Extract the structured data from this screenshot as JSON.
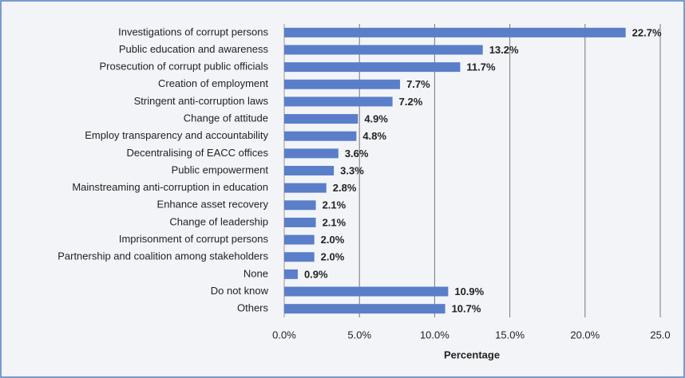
{
  "chart_data": {
    "type": "bar",
    "orientation": "horizontal",
    "categories": [
      "Investigations of corrupt persons",
      "Public education and awareness",
      "Prosecution of corrupt public officials",
      "Creation of employment",
      "Stringent anti-corruption laws",
      "Change of attitude",
      "Employ transparency and accountability",
      "Decentralising of EACC offices",
      "Public empowerment",
      "Mainstreaming anti-corruption in education",
      "Enhance asset recovery",
      "Change of leadership",
      "Imprisonment of corrupt persons",
      "Partnership and coalition among stakeholders",
      "None",
      "Do not know",
      "Others"
    ],
    "values": [
      22.7,
      13.2,
      11.7,
      7.7,
      7.2,
      4.9,
      4.8,
      3.6,
      3.3,
      2.8,
      2.1,
      2.1,
      2.0,
      2.0,
      0.9,
      10.9,
      10.7
    ],
    "value_labels": [
      "22.7%",
      "13.2%",
      "11.7%",
      "7.7%",
      "7.2%",
      "4.9%",
      "4.8%",
      "3.6%",
      "3.3%",
      "2.8%",
      "2.1%",
      "2.1%",
      "2.0%",
      "2.0%",
      "0.9%",
      "10.9%",
      "10.7%"
    ],
    "color": "#5a7ec8",
    "xlabel": "Percentage",
    "xlim": [
      0,
      25
    ],
    "xticks": [
      {
        "value": 0,
        "label": "0.0%"
      },
      {
        "value": 5,
        "label": "5.0%"
      },
      {
        "value": 10,
        "label": "10.0%"
      },
      {
        "value": 15,
        "label": "15.0%"
      },
      {
        "value": 20,
        "label": "20.0%"
      },
      {
        "value": 25,
        "label": "25.0"
      }
    ],
    "grid": true
  }
}
